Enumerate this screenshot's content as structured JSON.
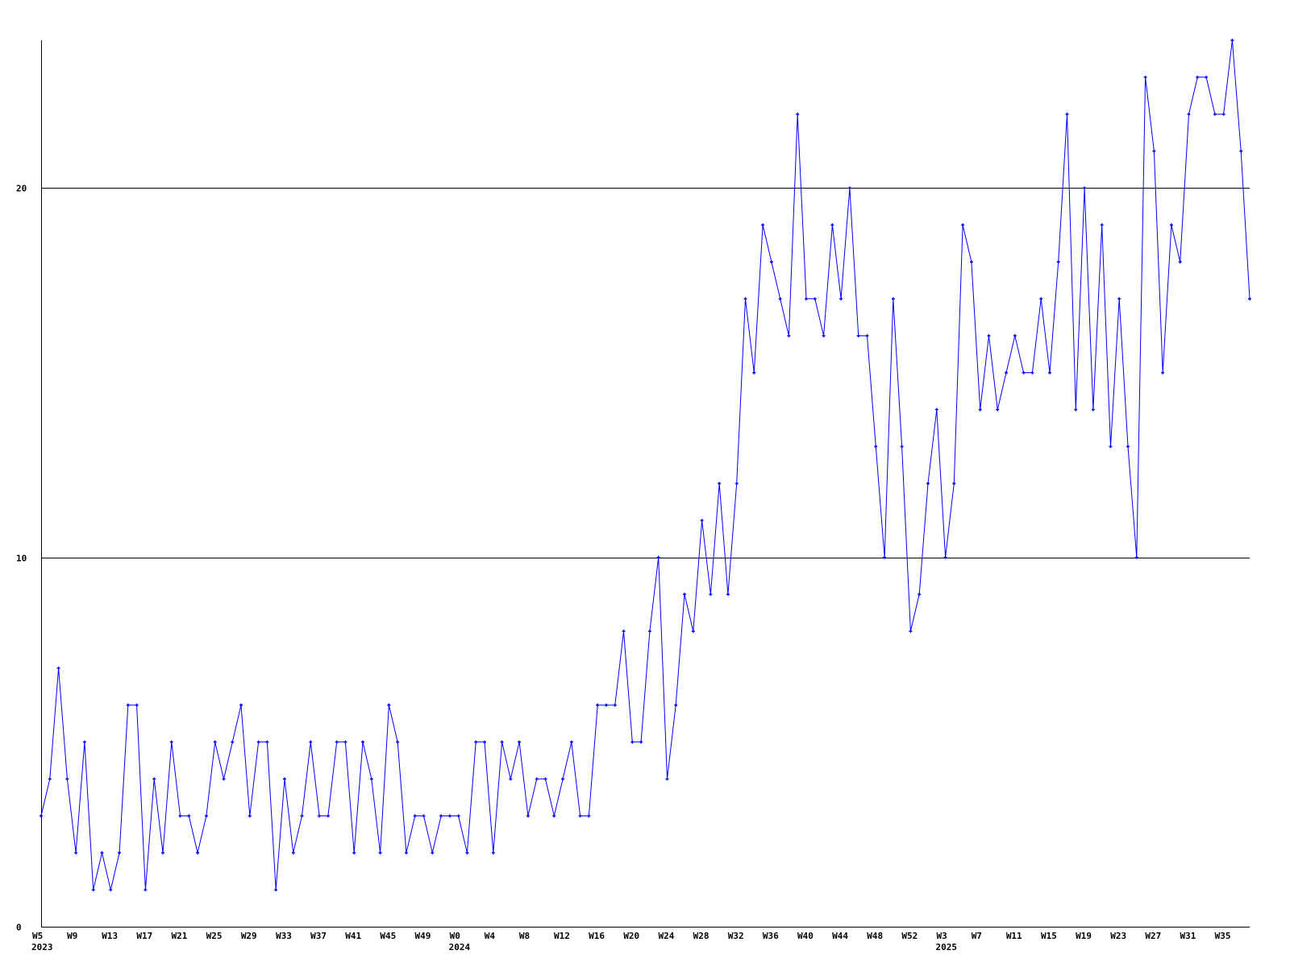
{
  "chart_data": {
    "type": "line",
    "title": "",
    "xlabel": "",
    "ylabel": "",
    "ylim": [
      0,
      24
    ],
    "yticks": [
      0,
      10,
      20
    ],
    "grid": "horizontal lines at y ticks",
    "legend": "none",
    "colors": {
      "series": "#0000ff",
      "axis": "#000000",
      "grid": "#000000",
      "background": "#ffffff"
    },
    "x": [
      "2023 W5",
      "2023 W6",
      "2023 W7",
      "2023 W8",
      "2023 W9",
      "2023 W10",
      "2023 W11",
      "2023 W12",
      "2023 W13",
      "2023 W14",
      "2023 W15",
      "2023 W16",
      "2023 W17",
      "2023 W18",
      "2023 W19",
      "2023 W20",
      "2023 W21",
      "2023 W22",
      "2023 W23",
      "2023 W24",
      "2023 W25",
      "2023 W26",
      "2023 W27",
      "2023 W28",
      "2023 W29",
      "2023 W30",
      "2023 W31",
      "2023 W32",
      "2023 W33",
      "2023 W34",
      "2023 W35",
      "2023 W36",
      "2023 W37",
      "2023 W38",
      "2023 W39",
      "2023 W40",
      "2023 W41",
      "2023 W42",
      "2023 W43",
      "2023 W44",
      "2023 W45",
      "2023 W46",
      "2023 W47",
      "2023 W48",
      "2023 W49",
      "2023 W50",
      "2023 W51",
      "2023 W52",
      "2024 W0",
      "2024 W1",
      "2024 W2",
      "2024 W3",
      "2024 W4",
      "2024 W5",
      "2024 W6",
      "2024 W7",
      "2024 W8",
      "2024 W9",
      "2024 W10",
      "2024 W11",
      "2024 W12",
      "2024 W13",
      "2024 W14",
      "2024 W15",
      "2024 W16",
      "2024 W17",
      "2024 W18",
      "2024 W19",
      "2024 W20",
      "2024 W21",
      "2024 W22",
      "2024 W23",
      "2024 W24",
      "2024 W25",
      "2024 W26",
      "2024 W27",
      "2024 W28",
      "2024 W29",
      "2024 W30",
      "2024 W31",
      "2024 W32",
      "2024 W33",
      "2024 W34",
      "2024 W35",
      "2024 W36",
      "2024 W37",
      "2024 W38",
      "2024 W39",
      "2024 W40",
      "2024 W41",
      "2024 W42",
      "2024 W43",
      "2024 W44",
      "2024 W45",
      "2024 W46",
      "2024 W47",
      "2024 W48",
      "2024 W49",
      "2024 W50",
      "2024 W51",
      "2024 W52",
      "2025 W0",
      "2025 W1",
      "2025 W2",
      "2025 W3",
      "2025 W4",
      "2025 W5",
      "2025 W6",
      "2025 W7",
      "2025 W8",
      "2025 W9",
      "2025 W10",
      "2025 W11",
      "2025 W12",
      "2025 W13",
      "2025 W14",
      "2025 W15",
      "2025 W16",
      "2025 W17",
      "2025 W18",
      "2025 W19",
      "2025 W20",
      "2025 W21",
      "2025 W22",
      "2025 W23",
      "2025 W24",
      "2025 W25",
      "2025 W26",
      "2025 W27",
      "2025 W28",
      "2025 W29",
      "2025 W30",
      "2025 W31",
      "2025 W32",
      "2025 W33",
      "2025 W34",
      "2025 W35",
      "2025 W36",
      "2025 W37",
      "2025 W38"
    ],
    "series": [
      {
        "values": [
          3,
          4,
          7,
          4,
          2,
          5,
          1,
          2,
          1,
          2,
          6,
          6,
          1,
          4,
          2,
          5,
          3,
          3,
          2,
          3,
          5,
          4,
          5,
          6,
          3,
          5,
          5,
          1,
          4,
          2,
          3,
          5,
          3,
          3,
          5,
          5,
          2,
          5,
          4,
          2,
          6,
          5,
          2,
          3,
          3,
          2,
          3,
          3,
          3,
          2,
          5,
          5,
          2,
          5,
          4,
          5,
          3,
          4,
          4,
          3,
          4,
          5,
          3,
          3,
          6,
          6,
          6,
          8,
          5,
          5,
          8,
          10,
          4,
          6,
          9,
          8,
          11,
          9,
          12,
          9,
          12,
          17,
          15,
          19,
          18,
          17,
          16,
          22,
          17,
          17,
          16,
          19,
          17,
          20,
          16,
          16,
          13,
          10,
          17,
          13,
          8,
          9,
          12,
          14,
          10,
          12,
          19,
          18,
          14,
          16,
          14,
          15,
          16,
          15,
          15,
          17,
          15,
          18,
          22,
          14,
          20,
          14,
          19,
          13,
          17,
          13,
          10,
          23,
          21,
          15,
          19,
          18,
          22,
          23,
          23,
          22,
          22,
          24,
          21,
          17
        ]
      }
    ],
    "xticks": [
      {
        "at": "2023 W5",
        "label": "W5",
        "year": "2023"
      },
      {
        "at": "2023 W9",
        "label": "W9"
      },
      {
        "at": "2023 W13",
        "label": "W13"
      },
      {
        "at": "2023 W17",
        "label": "W17"
      },
      {
        "at": "2023 W21",
        "label": "W21"
      },
      {
        "at": "2023 W25",
        "label": "W25"
      },
      {
        "at": "2023 W29",
        "label": "W29"
      },
      {
        "at": "2023 W33",
        "label": "W33"
      },
      {
        "at": "2023 W37",
        "label": "W37"
      },
      {
        "at": "2023 W41",
        "label": "W41"
      },
      {
        "at": "2023 W45",
        "label": "W45"
      },
      {
        "at": "2023 W49",
        "label": "W49"
      },
      {
        "at": "2024 W0",
        "label": "W0",
        "year": "2024"
      },
      {
        "at": "2024 W4",
        "label": "W4"
      },
      {
        "at": "2024 W8",
        "label": "W8"
      },
      {
        "at": "2024 W12",
        "label": "W12"
      },
      {
        "at": "2024 W16",
        "label": "W16"
      },
      {
        "at": "2024 W20",
        "label": "W20"
      },
      {
        "at": "2024 W24",
        "label": "W24"
      },
      {
        "at": "2024 W28",
        "label": "W28"
      },
      {
        "at": "2024 W32",
        "label": "W32"
      },
      {
        "at": "2024 W36",
        "label": "W36"
      },
      {
        "at": "2024 W40",
        "label": "W40"
      },
      {
        "at": "2024 W44",
        "label": "W44"
      },
      {
        "at": "2024 W48",
        "label": "W48"
      },
      {
        "at": "2024 W52",
        "label": "W52"
      },
      {
        "at": "2025 W3",
        "label": "W3",
        "year": "2025"
      },
      {
        "at": "2025 W7",
        "label": "W7"
      },
      {
        "at": "2025 W11",
        "label": "W11"
      },
      {
        "at": "2025 W15",
        "label": "W15"
      },
      {
        "at": "2025 W19",
        "label": "W19"
      },
      {
        "at": "2025 W23",
        "label": "W23"
      },
      {
        "at": "2025 W27",
        "label": "W27"
      },
      {
        "at": "2025 W31",
        "label": "W31"
      },
      {
        "at": "2025 W35",
        "label": "W35"
      }
    ]
  }
}
